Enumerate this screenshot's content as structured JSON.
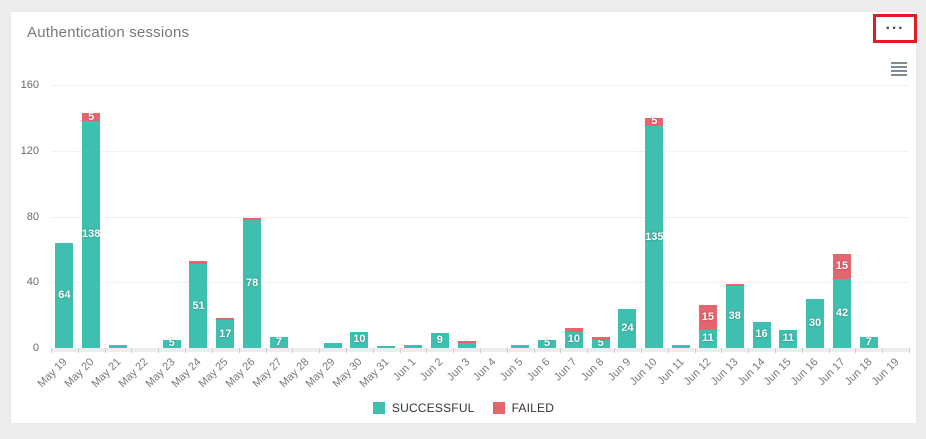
{
  "page": {
    "background_color": "#ececec"
  },
  "card": {
    "title": "Authentication sessions",
    "more_options_label": "···",
    "highlight_color": "#dc1f26",
    "menu_icon_color": "#7d8c9b"
  },
  "chart_data": {
    "type": "bar",
    "stacked": true,
    "title": "Authentication sessions",
    "xlabel": "",
    "ylabel": "",
    "ylim": [
      0,
      160
    ],
    "yticks": [
      0,
      40,
      80,
      120,
      160
    ],
    "grid": true,
    "legend_position": "bottom",
    "bar_label_min_value": 5,
    "categories": [
      "May 19",
      "May 20",
      "May 21",
      "May 22",
      "May 23",
      "May 24",
      "May 25",
      "May 26",
      "May 27",
      "May 28",
      "May 29",
      "May 30",
      "May 31",
      "Jun 1",
      "Jun 2",
      "Jun 3",
      "Jun 4",
      "Jun 5",
      "Jun 6",
      "Jun 7",
      "Jun 8",
      "Jun 9",
      "Jun 10",
      "Jun 11",
      "Jun 12",
      "Jun 13",
      "Jun 14",
      "Jun 15",
      "Jun 16",
      "Jun 17",
      "Jun 18",
      "Jun 19"
    ],
    "series": [
      {
        "name": "SUCCESSFUL",
        "color": "#3fbfaf",
        "values": [
          64,
          138,
          2,
          0,
          5,
          51,
          17,
          78,
          7,
          0,
          3,
          10,
          1,
          2,
          9,
          3,
          0,
          2,
          5,
          10,
          5,
          24,
          135,
          2,
          11,
          38,
          16,
          11,
          30,
          42,
          7,
          0
        ]
      },
      {
        "name": "FAILED",
        "color": "#e5646e",
        "values": [
          0,
          5,
          0,
          0,
          0,
          2,
          1,
          1,
          0,
          0,
          0,
          0,
          0,
          0,
          0,
          1,
          0,
          0,
          0,
          2,
          2,
          0,
          5,
          0,
          15,
          1,
          0,
          0,
          0,
          15,
          0,
          0
        ]
      }
    ]
  }
}
